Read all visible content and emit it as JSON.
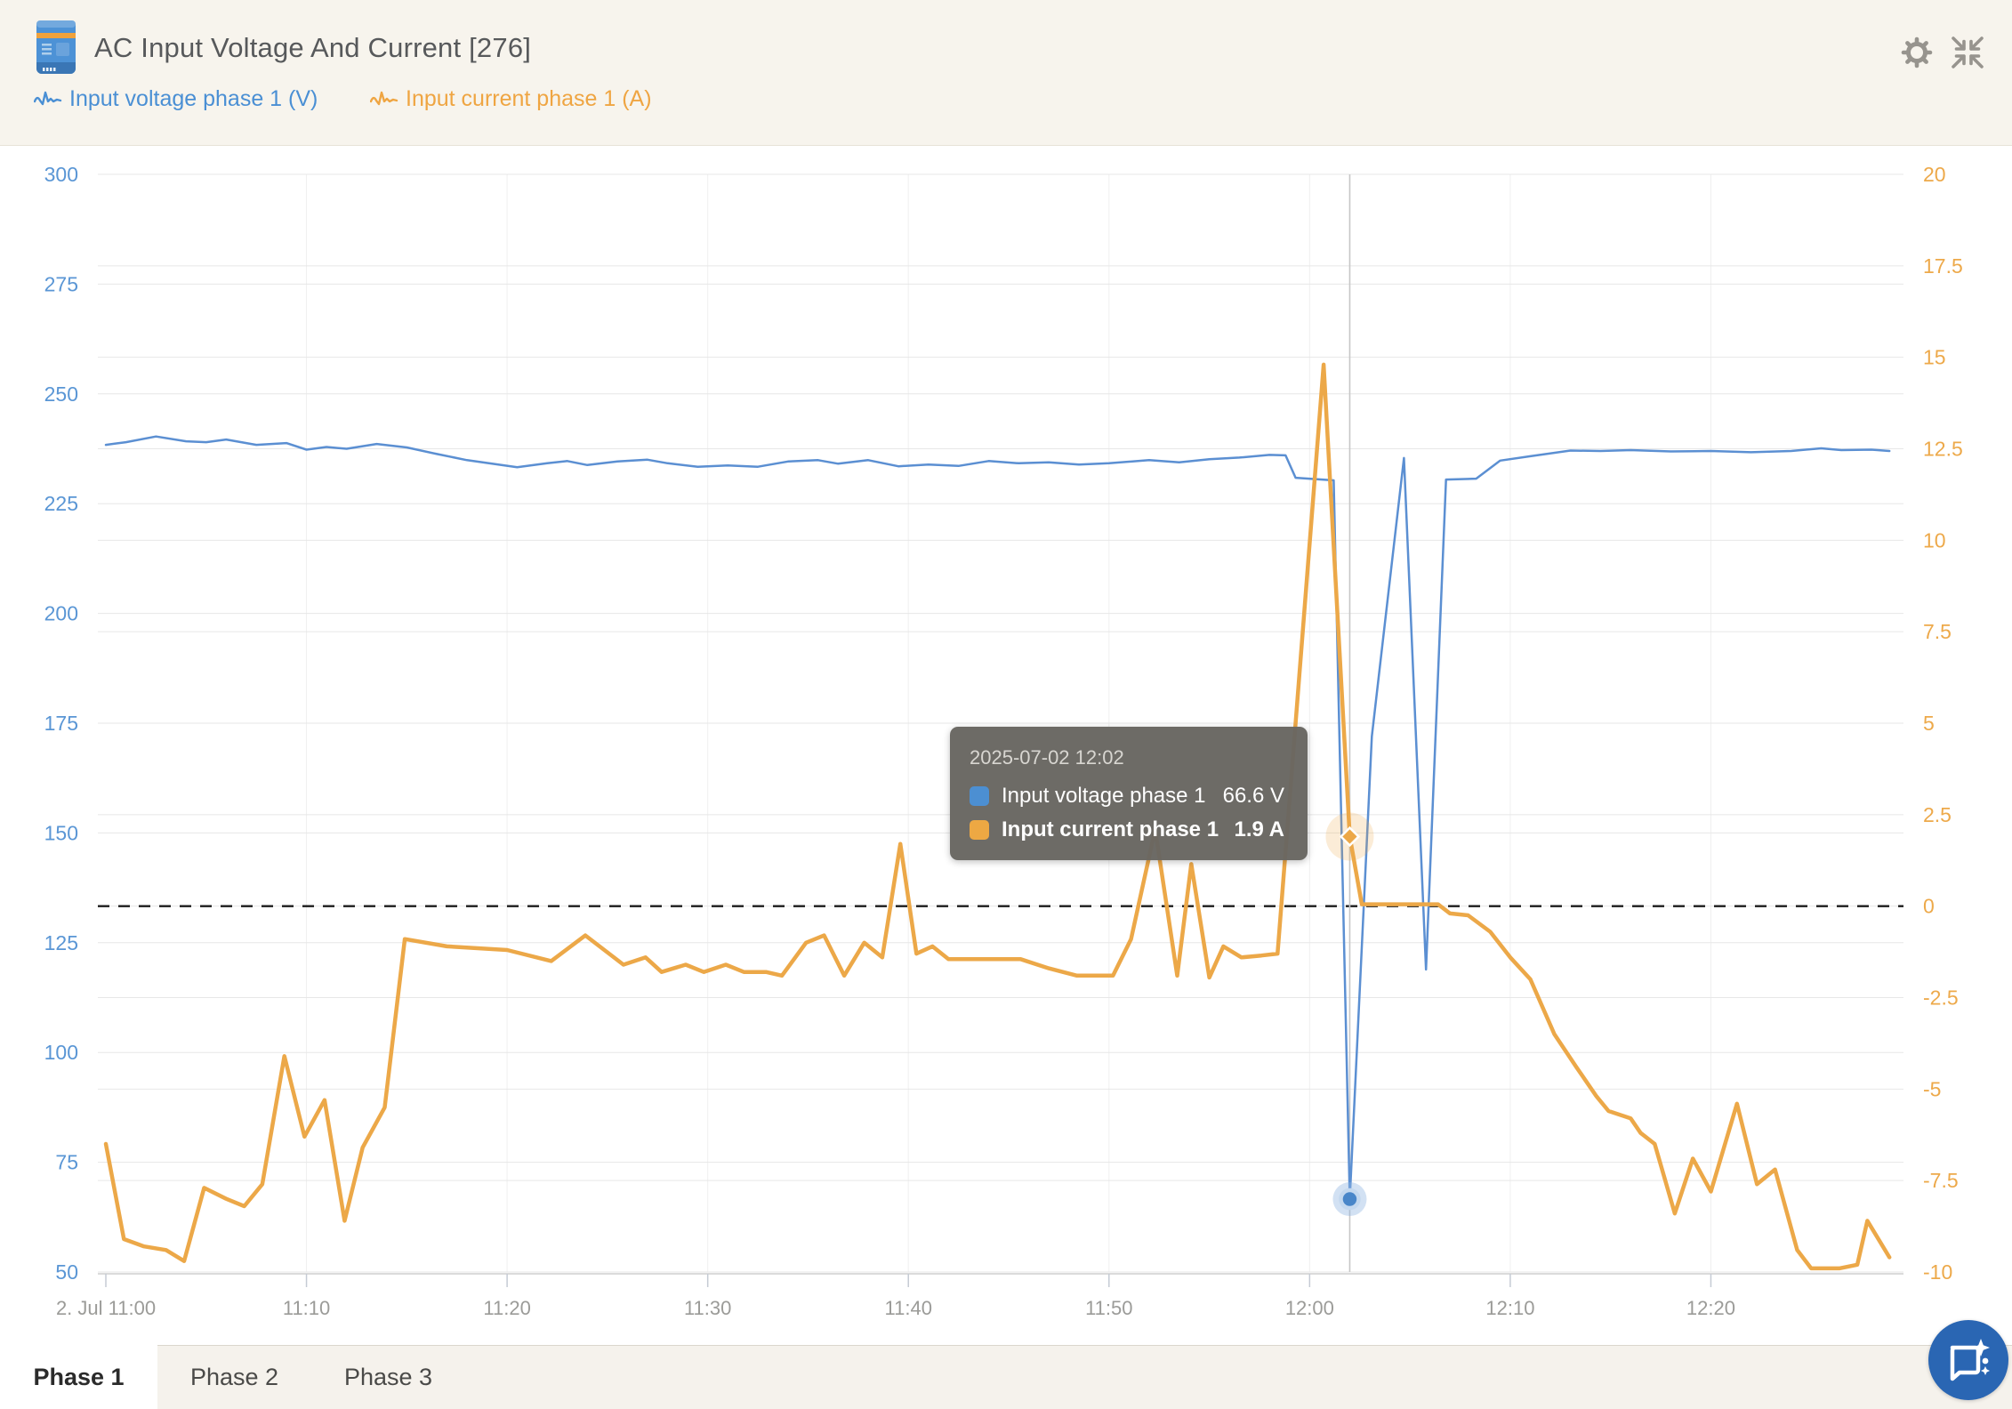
{
  "header": {
    "title": "AC Input Voltage And Current [276]",
    "legend": [
      {
        "label": "Input voltage phase 1 (V)",
        "color": "#4a8fd4"
      },
      {
        "label": "Input current phase 1 (A)",
        "color": "#efa542"
      }
    ]
  },
  "chart_data": {
    "type": "line",
    "title": "AC Input Voltage And Current [276]",
    "x_axis": {
      "tick_labels": [
        "2. Jul 11:00",
        "11:10",
        "11:20",
        "11:30",
        "11:40",
        "11:50",
        "12:00",
        "12:10",
        "12:20"
      ],
      "tick_minutes": [
        0,
        10,
        20,
        30,
        40,
        50,
        60,
        70,
        80
      ],
      "minutes_range": [
        -0.4,
        89.6
      ]
    },
    "left_axis": {
      "min": 50,
      "max": 300,
      "step": 25,
      "color": "#5a96d5",
      "label": "Input voltage phase 1 (V)"
    },
    "right_axis": {
      "min": -10,
      "max": 20,
      "step": 2.5,
      "color": "#eda94a",
      "label": "Input current phase 1 (A)"
    },
    "zero_line_axis": "right",
    "crosshair_minute": 62,
    "grid_on": true,
    "legend_position": "top-left",
    "series": [
      {
        "name": "Input voltage phase 1",
        "unit": "V",
        "axis": "left",
        "color": "#5b8fd2",
        "width": 2.5,
        "t": [
          0,
          1,
          2.5,
          4,
          5,
          6,
          7.5,
          9,
          10,
          11,
          12,
          13.5,
          15,
          16.5,
          18,
          20.5,
          22,
          23,
          24,
          25.5,
          27,
          28,
          29.5,
          31,
          32.5,
          34,
          35.5,
          36.5,
          38,
          39.5,
          41,
          42.5,
          44,
          45.5,
          47,
          48.5,
          50,
          52,
          53.5,
          55,
          56.5,
          58,
          58.8,
          59.3,
          61.2,
          62,
          63.1,
          64.7,
          65.8,
          66.8,
          68.3,
          69.5,
          71,
          73,
          74.5,
          76,
          78,
          80,
          82,
          84,
          85.5,
          86.5,
          88,
          88.9
        ],
        "v": [
          238.4,
          239.0,
          240.3,
          239.2,
          239.0,
          239.6,
          238.4,
          238.8,
          237.3,
          237.9,
          237.5,
          238.6,
          237.8,
          236.3,
          234.9,
          233.3,
          234.2,
          234.7,
          233.8,
          234.6,
          235.0,
          234.2,
          233.4,
          233.7,
          233.4,
          234.6,
          234.9,
          234.1,
          234.9,
          233.5,
          233.9,
          233.6,
          234.7,
          234.2,
          234.4,
          233.9,
          234.2,
          234.9,
          234.4,
          235.1,
          235.5,
          236.1,
          236.0,
          230.9,
          230.3,
          66.6,
          172.0,
          235.4,
          118.9,
          230.5,
          230.7,
          234.8,
          235.8,
          237.1,
          237.0,
          237.2,
          236.9,
          237.0,
          236.7,
          237.0,
          237.6,
          237.2,
          237.3,
          237.0
        ]
      },
      {
        "name": "Input current phase 1",
        "unit": "A",
        "axis": "right",
        "color": "#eca848",
        "width": 4.5,
        "t": [
          0,
          0.9,
          1.9,
          3,
          3.9,
          4.9,
          6,
          6.9,
          7.8,
          8.9,
          9.9,
          10.9,
          11.9,
          12.8,
          13.9,
          14.9,
          17,
          20,
          22.2,
          23.9,
          25.8,
          26.9,
          27.7,
          28.9,
          29.8,
          30.9,
          31.8,
          32.9,
          33.7,
          34.9,
          35.8,
          36.8,
          37.8,
          38.7,
          39.6,
          40.4,
          41.2,
          42,
          45.6,
          47,
          48.4,
          50.2,
          51.1,
          52.3,
          53.4,
          54.1,
          55,
          55.7,
          56.6,
          57.6,
          58.4,
          60.7,
          62,
          62.6,
          66.4,
          67,
          67.9,
          69,
          70,
          71,
          72.2,
          73.3,
          74.3,
          74.9,
          76,
          76.5,
          77.2,
          78.2,
          79.1,
          80,
          81.3,
          82.3,
          83.2,
          84.3,
          85,
          86.4,
          87.3,
          87.8,
          88.9
        ],
        "v": [
          -6.5,
          -9.1,
          -9.3,
          -9.4,
          -9.7,
          -7.7,
          -8.0,
          -8.2,
          -7.6,
          -4.1,
          -6.3,
          -5.3,
          -8.6,
          -6.6,
          -5.5,
          -0.9,
          -1.1,
          -1.2,
          -1.5,
          -0.8,
          -1.6,
          -1.4,
          -1.8,
          -1.6,
          -1.8,
          -1.6,
          -1.8,
          -1.8,
          -1.9,
          -1.0,
          -0.8,
          -1.9,
          -1.0,
          -1.4,
          1.7,
          -1.3,
          -1.1,
          -1.45,
          -1.45,
          -1.7,
          -1.9,
          -1.9,
          -0.9,
          2.1,
          -1.9,
          1.15,
          -1.95,
          -1.1,
          -1.4,
          -1.35,
          -1.3,
          14.8,
          1.9,
          0.05,
          0.05,
          -0.2,
          -0.25,
          -0.7,
          -1.4,
          -2.0,
          -3.5,
          -4.4,
          -5.2,
          -5.6,
          -5.8,
          -6.2,
          -6.5,
          -8.4,
          -6.9,
          -7.8,
          -5.4,
          -7.6,
          -7.2,
          -9.4,
          -9.9,
          -9.9,
          -9.8,
          -8.6,
          -9.6
        ]
      }
    ],
    "markers": [
      {
        "series": 0,
        "minute": 62,
        "value": 66.6,
        "shape": "circle",
        "color": "#4886c9"
      },
      {
        "series": 1,
        "minute": 62,
        "value": 1.9,
        "shape": "diamond",
        "color": "#eca848"
      }
    ]
  },
  "tooltip": {
    "date": "2025-07-02 12:02",
    "rows": [
      {
        "label": "Input voltage phase 1",
        "value": "66.6 V",
        "color": "#4c8fd2",
        "bold": false
      },
      {
        "label": "Input current phase 1",
        "value": "1.9 A",
        "color": "#eda843",
        "bold": true
      }
    ]
  },
  "tabs": [
    {
      "label": "Phase 1",
      "active": true
    },
    {
      "label": "Phase 2",
      "active": false
    },
    {
      "label": "Phase 3",
      "active": false
    }
  ]
}
